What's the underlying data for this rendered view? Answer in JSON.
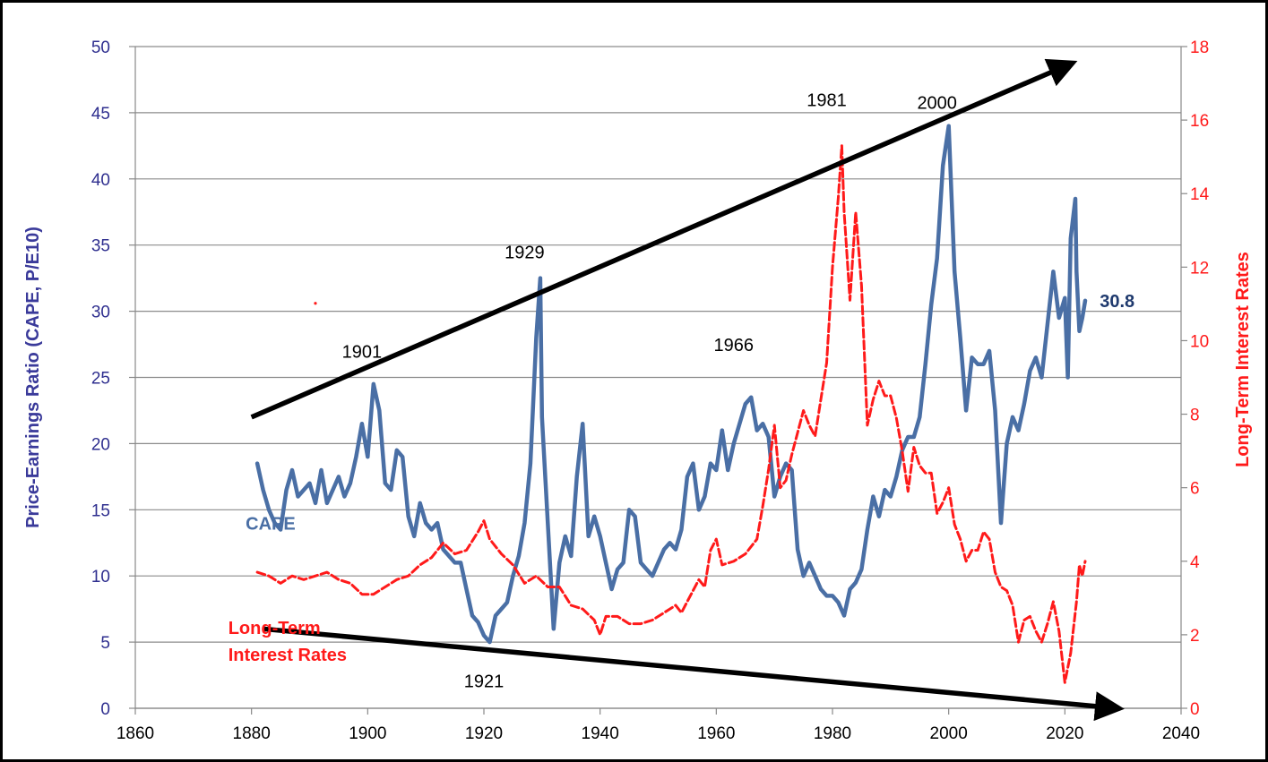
{
  "chart_data": {
    "type": "line",
    "xlim": [
      1860,
      2040
    ],
    "x_ticks": [
      1860,
      1880,
      1900,
      1920,
      1940,
      1960,
      1980,
      2000,
      2020,
      2040
    ],
    "ylim_left": [
      0,
      50
    ],
    "y_ticks_left": [
      0,
      5,
      10,
      15,
      20,
      25,
      30,
      35,
      40,
      45,
      50
    ],
    "ylim_right": [
      0,
      18
    ],
    "y_ticks_right": [
      0,
      2,
      4,
      6,
      8,
      10,
      12,
      14,
      16,
      18
    ],
    "ylabel_left": "Price-Earnings Ratio (CAPE, P/E10)",
    "ylabel_right": "Long-Term Interest Rates",
    "grid": "horizontal",
    "series": [
      {
        "name": "CAPE",
        "axis": "left",
        "color": "#4a6fa5",
        "style": "solid",
        "points": [
          [
            1881,
            18.5
          ],
          [
            1882,
            16.5
          ],
          [
            1883,
            15.0
          ],
          [
            1884,
            14.0
          ],
          [
            1885,
            13.5
          ],
          [
            1886,
            16.5
          ],
          [
            1887,
            18.0
          ],
          [
            1888,
            16.0
          ],
          [
            1889,
            16.5
          ],
          [
            1890,
            17.0
          ],
          [
            1891,
            15.5
          ],
          [
            1892,
            18.0
          ],
          [
            1893,
            15.5
          ],
          [
            1894,
            16.5
          ],
          [
            1895,
            17.5
          ],
          [
            1896,
            16.0
          ],
          [
            1897,
            17.0
          ],
          [
            1898,
            19.0
          ],
          [
            1899,
            21.5
          ],
          [
            1900,
            19.0
          ],
          [
            1901,
            24.5
          ],
          [
            1902,
            22.5
          ],
          [
            1903,
            17.0
          ],
          [
            1904,
            16.5
          ],
          [
            1905,
            19.5
          ],
          [
            1906,
            19.0
          ],
          [
            1907,
            14.5
          ],
          [
            1908,
            13.0
          ],
          [
            1909,
            15.5
          ],
          [
            1910,
            14.0
          ],
          [
            1911,
            13.5
          ],
          [
            1912,
            14.0
          ],
          [
            1913,
            12.0
          ],
          [
            1914,
            11.5
          ],
          [
            1915,
            11.0
          ],
          [
            1916,
            11.0
          ],
          [
            1917,
            9.0
          ],
          [
            1918,
            7.0
          ],
          [
            1919,
            6.5
          ],
          [
            1920,
            5.5
          ],
          [
            1921,
            5.0
          ],
          [
            1922,
            7.0
          ],
          [
            1923,
            7.5
          ],
          [
            1924,
            8.0
          ],
          [
            1925,
            10.0
          ],
          [
            1926,
            11.5
          ],
          [
            1927,
            14.0
          ],
          [
            1928,
            18.5
          ],
          [
            1929,
            28.0
          ],
          [
            1929.7,
            32.5
          ],
          [
            1930,
            22.0
          ],
          [
            1931,
            14.0
          ],
          [
            1932,
            6.0
          ],
          [
            1933,
            11.0
          ],
          [
            1934,
            13.0
          ],
          [
            1935,
            11.5
          ],
          [
            1936,
            17.5
          ],
          [
            1937,
            21.5
          ],
          [
            1938,
            13.0
          ],
          [
            1939,
            14.5
          ],
          [
            1940,
            13.0
          ],
          [
            1941,
            11.0
          ],
          [
            1942,
            9.0
          ],
          [
            1943,
            10.5
          ],
          [
            1944,
            11.0
          ],
          [
            1945,
            15.0
          ],
          [
            1946,
            14.5
          ],
          [
            1947,
            11.0
          ],
          [
            1948,
            10.5
          ],
          [
            1949,
            10.0
          ],
          [
            1950,
            11.0
          ],
          [
            1951,
            12.0
          ],
          [
            1952,
            12.5
          ],
          [
            1953,
            12.0
          ],
          [
            1954,
            13.5
          ],
          [
            1955,
            17.5
          ],
          [
            1956,
            18.5
          ],
          [
            1957,
            15.0
          ],
          [
            1958,
            16.0
          ],
          [
            1959,
            18.5
          ],
          [
            1960,
            18.0
          ],
          [
            1961,
            21.0
          ],
          [
            1962,
            18.0
          ],
          [
            1963,
            20.0
          ],
          [
            1964,
            21.5
          ],
          [
            1965,
            23.0
          ],
          [
            1966,
            23.5
          ],
          [
            1967,
            21.0
          ],
          [
            1968,
            21.5
          ],
          [
            1969,
            20.5
          ],
          [
            1970,
            16.0
          ],
          [
            1971,
            17.5
          ],
          [
            1972,
            18.5
          ],
          [
            1973,
            18.0
          ],
          [
            1974,
            12.0
          ],
          [
            1975,
            10.0
          ],
          [
            1976,
            11.0
          ],
          [
            1977,
            10.0
          ],
          [
            1978,
            9.0
          ],
          [
            1979,
            8.5
          ],
          [
            1980,
            8.5
          ],
          [
            1981,
            8.0
          ],
          [
            1982,
            7.0
          ],
          [
            1983,
            9.0
          ],
          [
            1984,
            9.5
          ],
          [
            1985,
            10.5
          ],
          [
            1986,
            13.5
          ],
          [
            1987,
            16.0
          ],
          [
            1988,
            14.5
          ],
          [
            1989,
            16.5
          ],
          [
            1990,
            16.0
          ],
          [
            1991,
            17.5
          ],
          [
            1992,
            19.5
          ],
          [
            1993,
            20.5
          ],
          [
            1994,
            20.5
          ],
          [
            1995,
            22.0
          ],
          [
            1996,
            26.0
          ],
          [
            1997,
            30.5
          ],
          [
            1998,
            34.0
          ],
          [
            1999,
            41.0
          ],
          [
            2000,
            44.0
          ],
          [
            2001,
            33.0
          ],
          [
            2002,
            28.0
          ],
          [
            2003,
            22.5
          ],
          [
            2004,
            26.5
          ],
          [
            2005,
            26.0
          ],
          [
            2006,
            26.0
          ],
          [
            2007,
            27.0
          ],
          [
            2008,
            22.5
          ],
          [
            2009,
            14.0
          ],
          [
            2010,
            20.0
          ],
          [
            2011,
            22.0
          ],
          [
            2012,
            21.0
          ],
          [
            2013,
            23.0
          ],
          [
            2014,
            25.5
          ],
          [
            2015,
            26.5
          ],
          [
            2016,
            25.0
          ],
          [
            2017,
            29.0
          ],
          [
            2018,
            33.0
          ],
          [
            2019,
            29.5
          ],
          [
            2020,
            31.0
          ],
          [
            2020.5,
            25.0
          ],
          [
            2021,
            35.5
          ],
          [
            2021.8,
            38.5
          ],
          [
            2022,
            33.0
          ],
          [
            2022.5,
            28.5
          ],
          [
            2023,
            29.5
          ],
          [
            2023.5,
            30.8
          ]
        ]
      },
      {
        "name": "Long-Term Interest Rates",
        "axis": "right",
        "color": "#ff1a1a",
        "style": "dashed",
        "points": [
          [
            1881,
            3.7
          ],
          [
            1883,
            3.6
          ],
          [
            1885,
            3.4
          ],
          [
            1887,
            3.6
          ],
          [
            1889,
            3.5
          ],
          [
            1891,
            3.6
          ],
          [
            1893,
            3.7
          ],
          [
            1895,
            3.5
          ],
          [
            1897,
            3.4
          ],
          [
            1899,
            3.1
          ],
          [
            1901,
            3.1
          ],
          [
            1903,
            3.3
          ],
          [
            1905,
            3.5
          ],
          [
            1907,
            3.6
          ],
          [
            1909,
            3.9
          ],
          [
            1911,
            4.1
          ],
          [
            1913,
            4.5
          ],
          [
            1915,
            4.2
          ],
          [
            1917,
            4.3
          ],
          [
            1919,
            4.8
          ],
          [
            1920,
            5.1
          ],
          [
            1921,
            4.6
          ],
          [
            1923,
            4.2
          ],
          [
            1925,
            3.9
          ],
          [
            1927,
            3.4
          ],
          [
            1929,
            3.6
          ],
          [
            1931,
            3.3
          ],
          [
            1933,
            3.3
          ],
          [
            1935,
            2.8
          ],
          [
            1937,
            2.7
          ],
          [
            1939,
            2.4
          ],
          [
            1940,
            2.0
          ],
          [
            1941,
            2.5
          ],
          [
            1943,
            2.5
          ],
          [
            1945,
            2.3
          ],
          [
            1947,
            2.3
          ],
          [
            1949,
            2.4
          ],
          [
            1951,
            2.6
          ],
          [
            1953,
            2.8
          ],
          [
            1954,
            2.6
          ],
          [
            1955,
            2.9
          ],
          [
            1957,
            3.5
          ],
          [
            1958,
            3.3
          ],
          [
            1959,
            4.3
          ],
          [
            1960,
            4.6
          ],
          [
            1961,
            3.9
          ],
          [
            1963,
            4.0
          ],
          [
            1965,
            4.2
          ],
          [
            1967,
            4.6
          ],
          [
            1968,
            5.5
          ],
          [
            1969,
            6.5
          ],
          [
            1970,
            7.7
          ],
          [
            1971,
            6.0
          ],
          [
            1972,
            6.2
          ],
          [
            1973,
            6.9
          ],
          [
            1974,
            7.5
          ],
          [
            1975,
            8.1
          ],
          [
            1976,
            7.7
          ],
          [
            1977,
            7.4
          ],
          [
            1978,
            8.4
          ],
          [
            1979,
            9.4
          ],
          [
            1980,
            12.0
          ],
          [
            1981,
            13.9
          ],
          [
            1981.6,
            15.3
          ],
          [
            1982,
            13.5
          ],
          [
            1983,
            11.1
          ],
          [
            1984,
            13.5
          ],
          [
            1985,
            11.5
          ],
          [
            1986,
            7.7
          ],
          [
            1987,
            8.4
          ],
          [
            1988,
            8.9
          ],
          [
            1989,
            8.5
          ],
          [
            1990,
            8.5
          ],
          [
            1991,
            7.9
          ],
          [
            1992,
            7.0
          ],
          [
            1993,
            5.9
          ],
          [
            1994,
            7.1
          ],
          [
            1995,
            6.6
          ],
          [
            1996,
            6.4
          ],
          [
            1997,
            6.4
          ],
          [
            1998,
            5.3
          ],
          [
            1999,
            5.6
          ],
          [
            2000,
            6.0
          ],
          [
            2001,
            5.0
          ],
          [
            2002,
            4.6
          ],
          [
            2003,
            4.0
          ],
          [
            2004,
            4.3
          ],
          [
            2005,
            4.3
          ],
          [
            2006,
            4.8
          ],
          [
            2007,
            4.6
          ],
          [
            2008,
            3.7
          ],
          [
            2009,
            3.3
          ],
          [
            2010,
            3.2
          ],
          [
            2011,
            2.8
          ],
          [
            2012,
            1.8
          ],
          [
            2013,
            2.4
          ],
          [
            2014,
            2.5
          ],
          [
            2015,
            2.1
          ],
          [
            2016,
            1.8
          ],
          [
            2017,
            2.3
          ],
          [
            2018,
            2.9
          ],
          [
            2019,
            2.1
          ],
          [
            2020,
            0.7
          ],
          [
            2021,
            1.5
          ],
          [
            2022,
            2.9
          ],
          [
            2022.5,
            3.9
          ],
          [
            2023,
            3.6
          ],
          [
            2023.5,
            4.0
          ]
        ]
      }
    ],
    "series_labels": [
      {
        "text": "CAPE",
        "series": "CAPE",
        "at": [
          1879,
          13.5
        ]
      },
      {
        "text": "Long-Term",
        "series": "Long-Term Interest Rates",
        "at": [
          1876,
          5.6
        ]
      },
      {
        "text": "Interest Rates",
        "series": "Long-Term Interest Rates",
        "at": [
          1876,
          3.6
        ]
      }
    ],
    "end_value_label": {
      "text": "30.8",
      "at": [
        2026,
        30.8
      ]
    },
    "annotations": [
      {
        "text": "1901",
        "at": [
          1899,
          26.5
        ]
      },
      {
        "text": "1929",
        "at": [
          1927,
          34.0
        ]
      },
      {
        "text": "1966",
        "at": [
          1963,
          27.0
        ]
      },
      {
        "text": "1981",
        "at": [
          1979,
          45.5
        ]
      },
      {
        "text": "2000",
        "at": [
          1998,
          45.3
        ]
      },
      {
        "text": "1921",
        "at": [
          1920,
          1.6
        ]
      }
    ],
    "trend_arrows": [
      {
        "from": [
          1880,
          22.0
        ],
        "to": [
          2021,
          48.7
        ]
      },
      {
        "from": [
          1882,
          6.0
        ],
        "to": [
          2029,
          0.0
        ]
      }
    ],
    "stray_marks": [
      {
        "series": "Long-Term Interest Rates",
        "at": [
          1891,
          30.6
        ]
      }
    ]
  }
}
